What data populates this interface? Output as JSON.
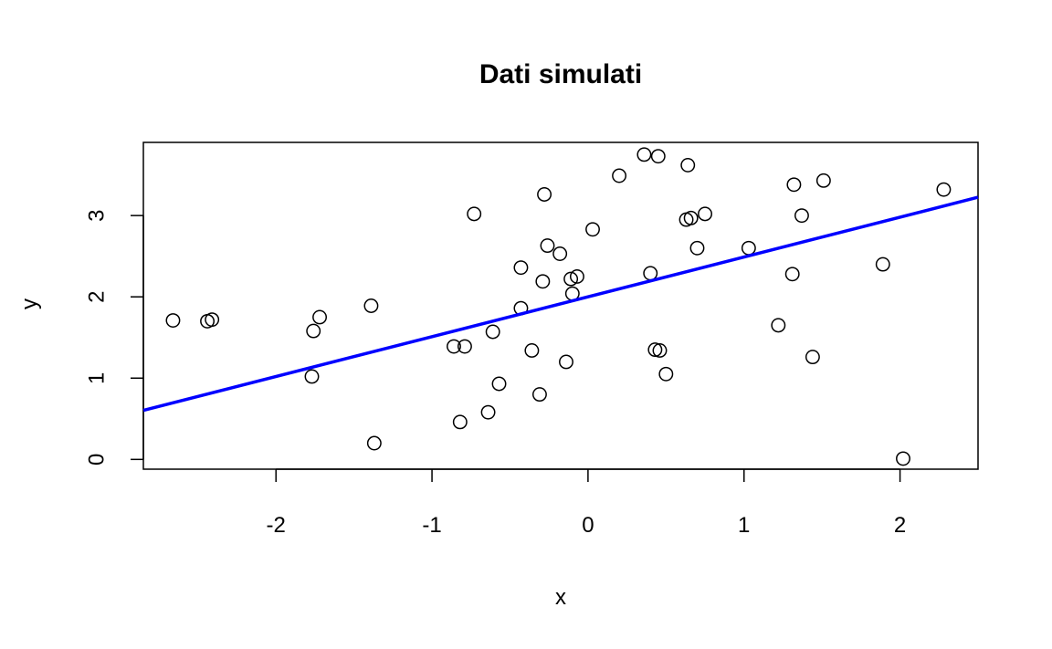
{
  "chart_data": {
    "type": "scatter",
    "title": "Dati simulati",
    "xlabel": "x",
    "ylabel": "y",
    "xlim": [
      -2.85,
      2.5
    ],
    "ylim": [
      -0.12,
      3.9
    ],
    "x_ticks": [
      -2,
      -1,
      0,
      1,
      2
    ],
    "y_ticks": [
      0,
      1,
      2,
      3
    ],
    "x_tick_labels": [
      "-2",
      "-1",
      "0",
      "1",
      "2"
    ],
    "y_tick_labels": [
      "0",
      "1",
      "2",
      "3"
    ],
    "grid": false,
    "points": [
      [
        -2.66,
        1.71
      ],
      [
        -2.44,
        1.7
      ],
      [
        -2.41,
        1.72
      ],
      [
        -1.77,
        1.02
      ],
      [
        -1.76,
        1.58
      ],
      [
        -1.72,
        1.75
      ],
      [
        -1.39,
        1.89
      ],
      [
        -1.37,
        0.2
      ],
      [
        -0.86,
        1.39
      ],
      [
        -0.79,
        1.39
      ],
      [
        -0.82,
        0.46
      ],
      [
        -0.73,
        3.02
      ],
      [
        -0.64,
        0.58
      ],
      [
        -0.61,
        1.57
      ],
      [
        -0.57,
        0.93
      ],
      [
        -0.43,
        2.36
      ],
      [
        -0.43,
        1.86
      ],
      [
        -0.36,
        1.34
      ],
      [
        -0.31,
        0.8
      ],
      [
        -0.29,
        2.19
      ],
      [
        -0.28,
        3.26
      ],
      [
        -0.26,
        2.63
      ],
      [
        -0.18,
        2.53
      ],
      [
        -0.14,
        1.2
      ],
      [
        -0.11,
        2.22
      ],
      [
        -0.1,
        2.04
      ],
      [
        -0.07,
        2.25
      ],
      [
        0.03,
        2.83
      ],
      [
        0.2,
        3.49
      ],
      [
        0.36,
        3.75
      ],
      [
        0.4,
        2.29
      ],
      [
        0.43,
        1.35
      ],
      [
        0.45,
        3.73
      ],
      [
        0.46,
        1.34
      ],
      [
        0.5,
        1.05
      ],
      [
        0.63,
        2.95
      ],
      [
        0.64,
        3.62
      ],
      [
        0.66,
        2.97
      ],
      [
        0.7,
        2.6
      ],
      [
        0.75,
        3.02
      ],
      [
        1.03,
        2.6
      ],
      [
        1.22,
        1.65
      ],
      [
        1.31,
        2.28
      ],
      [
        1.32,
        3.38
      ],
      [
        1.37,
        3.0
      ],
      [
        1.44,
        1.26
      ],
      [
        1.51,
        3.43
      ],
      [
        1.89,
        2.4
      ],
      [
        2.02,
        0.01
      ],
      [
        2.28,
        3.32
      ]
    ],
    "fit_line": {
      "intercept": 2.0,
      "slope": 0.49,
      "color": "#0000ff"
    },
    "point_color": "#000000"
  }
}
